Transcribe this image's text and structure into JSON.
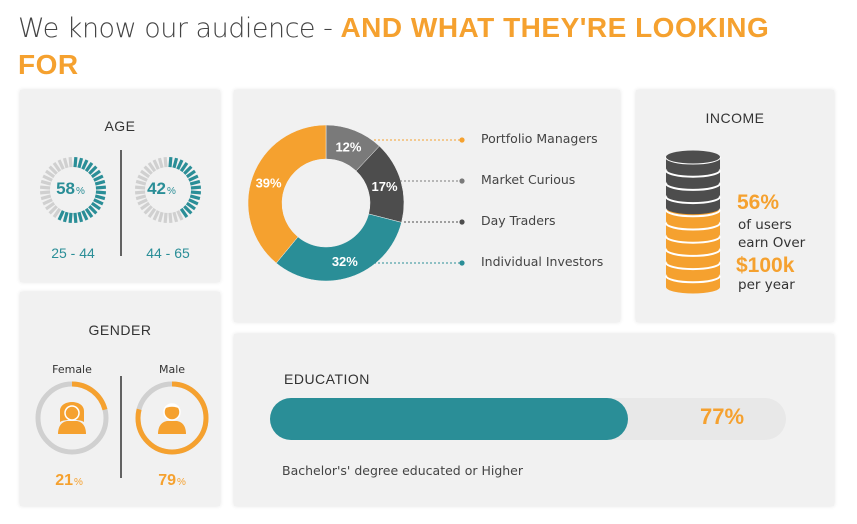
{
  "title": {
    "light": "We know our audience - ",
    "bold": "AND WHAT THEY'RE LOOKING FOR"
  },
  "age": {
    "heading": "AGE",
    "groups": [
      {
        "value": 58,
        "value_text": "58",
        "unit": "%",
        "range": "25 - 44"
      },
      {
        "value": 42,
        "value_text": "42",
        "unit": "%",
        "range": "44 - 65"
      }
    ]
  },
  "segments": {
    "items": [
      {
        "label": "Portfolio Managers",
        "value": 12,
        "value_text": "12%",
        "color": "#7a7a7a",
        "dot": "#f5a12f"
      },
      {
        "label": "Market Curious",
        "value": 17,
        "value_text": "17%",
        "color": "#4d4d4d",
        "dot": "#7a7a7a"
      },
      {
        "label": "Day  Traders",
        "value": 32,
        "value_text": "32%",
        "color": "#2a8e97",
        "dot": "#4d4d4d"
      },
      {
        "label": "Individual Investors",
        "value": 39,
        "value_text": "39%",
        "color": "#f5a12f",
        "dot": "#2a8e97"
      }
    ]
  },
  "income": {
    "heading": "INCOME",
    "pct": "56%",
    "line1": "of users",
    "line2": "earn Over",
    "amount": "$100k",
    "line3": "per year",
    "share": 0.56
  },
  "gender": {
    "heading": "GENDER",
    "groups": [
      {
        "label": "Female",
        "value": 21,
        "value_text": "21",
        "unit": "%",
        "icon": "female-user-icon"
      },
      {
        "label": "Male",
        "value": 79,
        "value_text": "79",
        "unit": "%",
        "icon": "male-user-icon"
      }
    ]
  },
  "education": {
    "heading": "EDUCATION",
    "value": 77,
    "value_text": "77%",
    "caption": "Bachelor's' degree educated or Higher"
  },
  "colors": {
    "orange": "#f5a12f",
    "teal": "#2a8e97",
    "dark_gray": "#4d4d4d",
    "mid_gray": "#7a7a7a",
    "light_gray": "#d0d0d0",
    "card_bg": "#f1f1f1"
  }
}
